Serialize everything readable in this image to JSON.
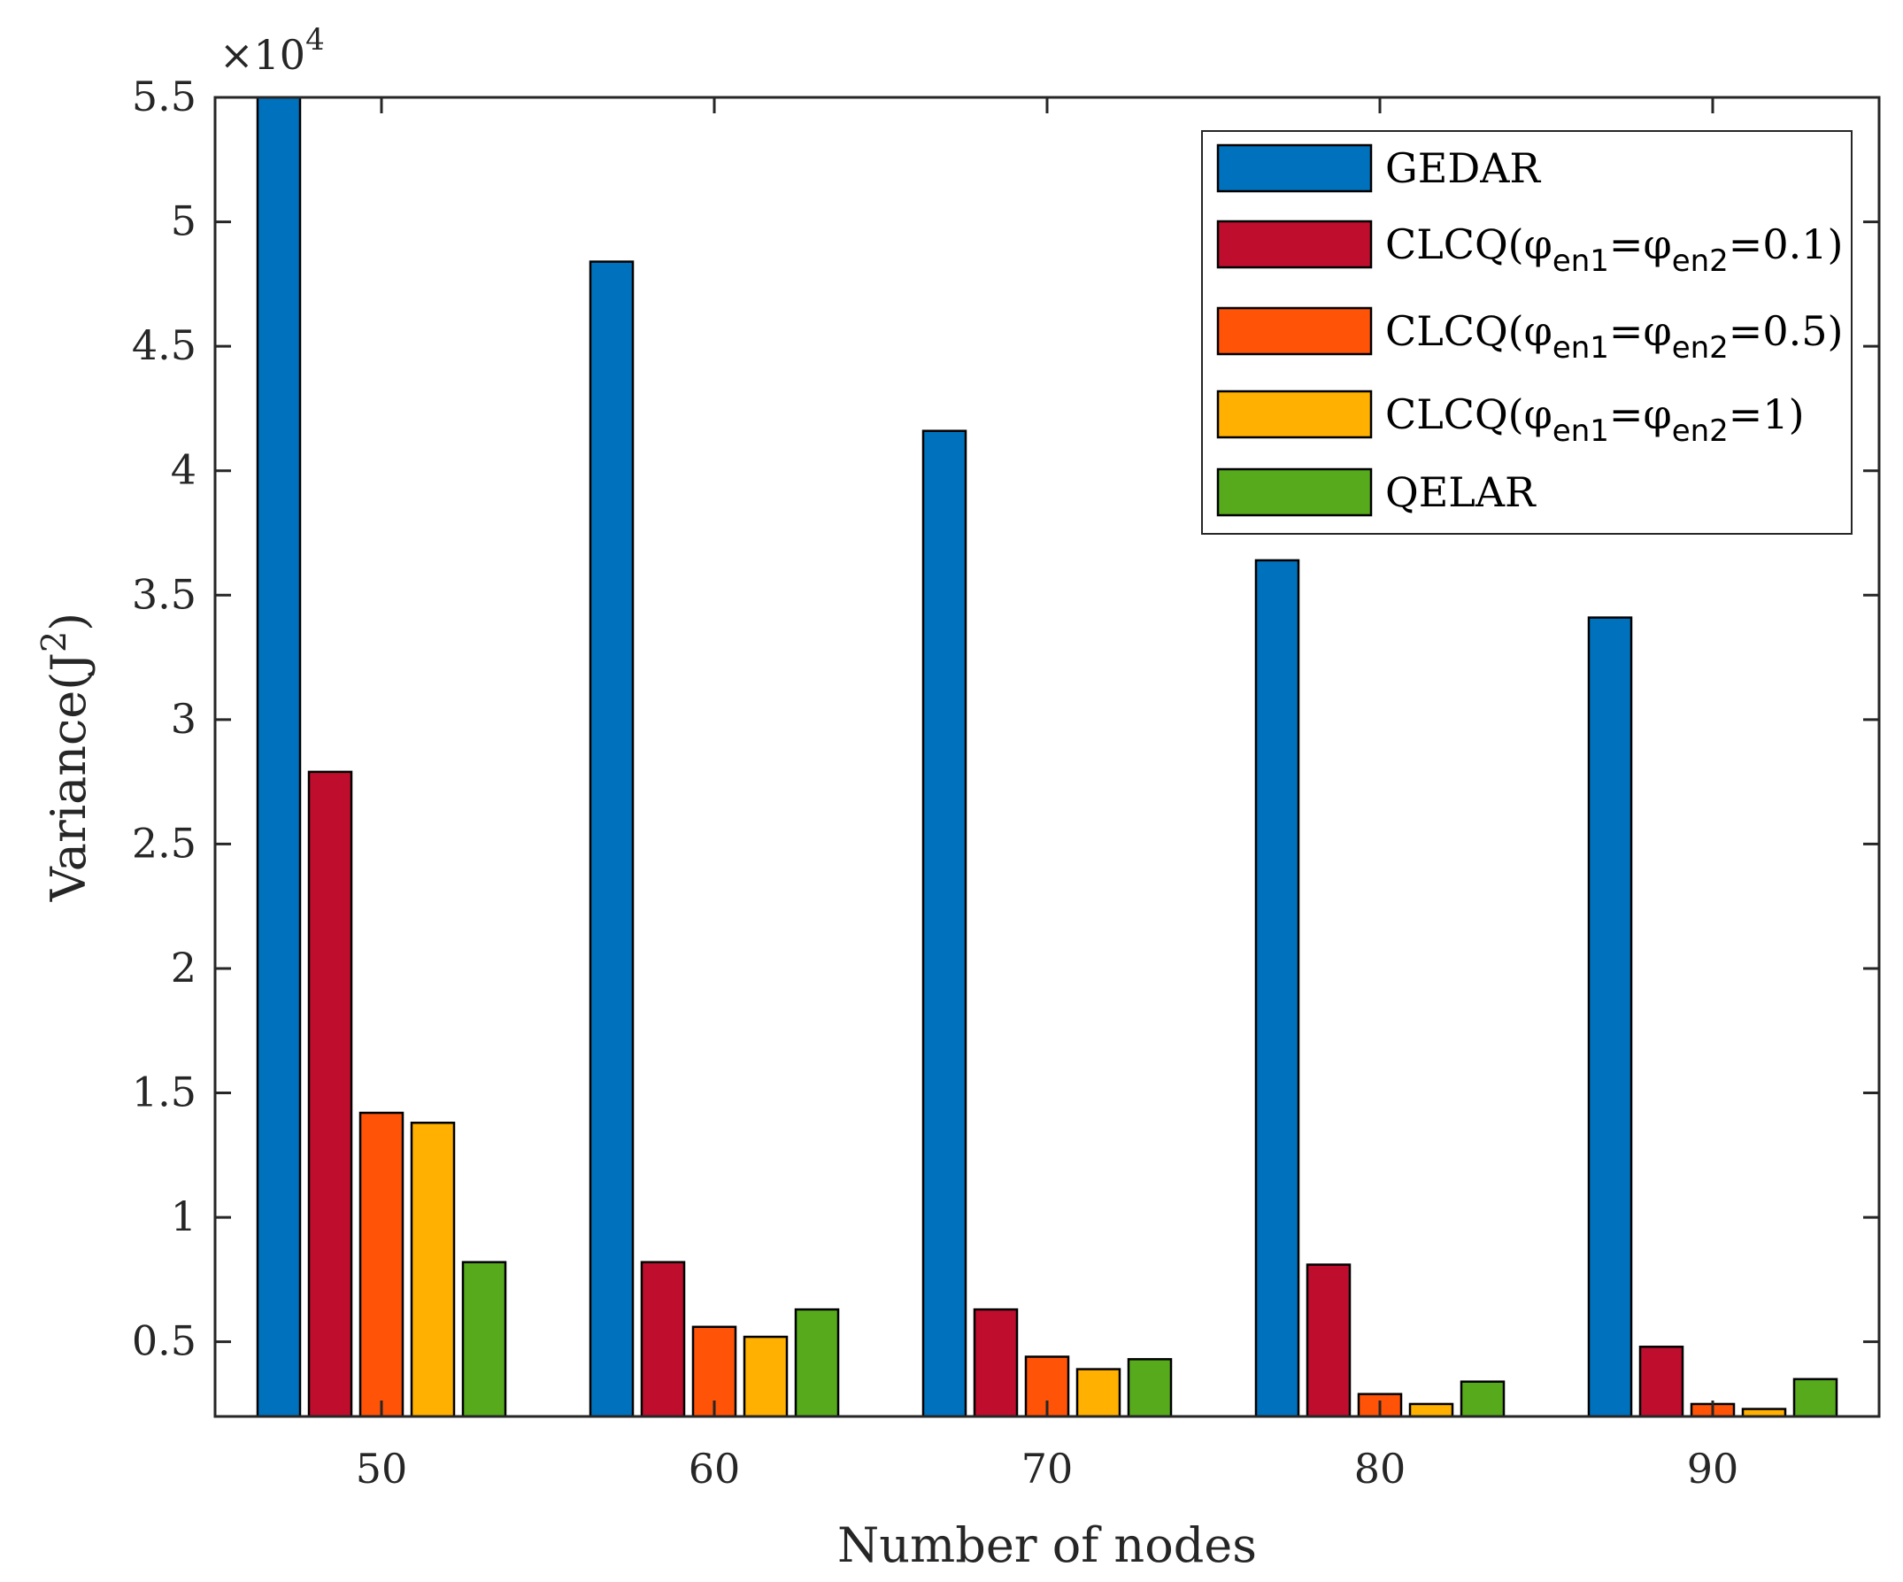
{
  "chart_data": {
    "type": "bar",
    "xlabel": "Number of nodes",
    "ylabel": "Variance(J",
    "ylabel_sup": "2",
    "ylabel_close": ")",
    "y_multiplier_prefix": "×10",
    "y_multiplier_exp": "4",
    "categories": [
      "50",
      "60",
      "70",
      "80",
      "90"
    ],
    "ylim": [
      0.2,
      5.5
    ],
    "yticks": [
      0.5,
      1,
      1.5,
      2,
      2.5,
      3,
      3.5,
      4,
      4.5,
      5,
      5.5
    ],
    "ytick_labels": [
      "0.5",
      "1",
      "1.5",
      "2",
      "2.5",
      "3",
      "3.5",
      "4",
      "4.5",
      "5",
      "5.5"
    ],
    "units": "×10^4 J^2",
    "grid": false,
    "legend_position": "top-right",
    "series": [
      {
        "name": "GEDAR",
        "color": "#0072BD",
        "values": [
          5.5,
          4.84,
          4.16,
          3.64,
          3.41
        ]
      },
      {
        "name": "CLCQ(φen1=φen2=0.1)",
        "color": "#BF0D2E",
        "values": [
          2.79,
          0.82,
          0.63,
          0.81,
          0.48
        ]
      },
      {
        "name": "CLCQ(φen1=φen2=0.5)",
        "color": "#FF5308",
        "values": [
          1.42,
          0.56,
          0.44,
          0.29,
          0.25
        ]
      },
      {
        "name": "CLCQ(φen1=φen2=1)",
        "color": "#FFB000",
        "values": [
          1.38,
          0.52,
          0.39,
          0.25,
          0.23
        ]
      },
      {
        "name": "QELAR",
        "color": "#56AA1C",
        "values": [
          0.82,
          0.63,
          0.43,
          0.34,
          0.35
        ]
      }
    ],
    "legend": [
      {
        "prefix": "GEDAR",
        "sub1": "",
        "mid": "",
        "sub2": "",
        "suffix": ""
      },
      {
        "prefix": "CLCQ(φ",
        "sub1": "en1",
        "mid": "=φ",
        "sub2": "en2",
        "suffix": "=0.1)"
      },
      {
        "prefix": "CLCQ(φ",
        "sub1": "en1",
        "mid": "=φ",
        "sub2": "en2",
        "suffix": "=0.5)"
      },
      {
        "prefix": "CLCQ(φ",
        "sub1": "en1",
        "mid": "=φ",
        "sub2": "en2",
        "suffix": "=1)"
      },
      {
        "prefix": "QELAR",
        "sub1": "",
        "mid": "",
        "sub2": "",
        "suffix": ""
      }
    ]
  }
}
